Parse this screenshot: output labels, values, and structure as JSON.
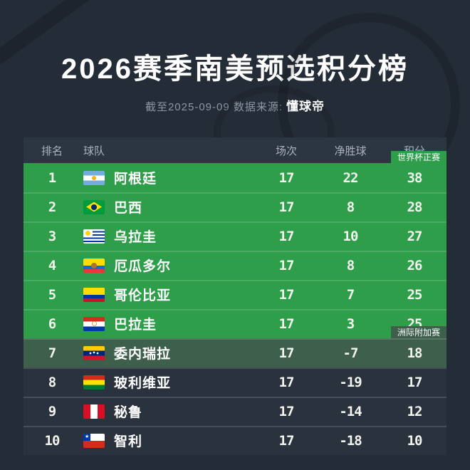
{
  "title": "2026赛季南美预选积分榜",
  "subtitle": {
    "prefix": "截至2025-09-09 数据来源:",
    "source": "懂球帝"
  },
  "colors": {
    "background": "#242c37",
    "header_bg": "#2c3542",
    "row_bg": "#2a323e",
    "qualified_green": "#2e9e4b",
    "playoff_green": "#3d5f4c",
    "text_primary": "#ffffff",
    "text_secondary": "#8d97a3"
  },
  "table": {
    "headers": {
      "rank": "排名",
      "team": "球队",
      "played": "场次",
      "gd": "净胜球",
      "points": "积分"
    },
    "rows": [
      {
        "rank": "1",
        "team": "阿根廷",
        "flag": "argentina",
        "played": "17",
        "gd": "22",
        "points": "38",
        "zone": "wc",
        "badge": "世界杯正赛"
      },
      {
        "rank": "2",
        "team": "巴西",
        "flag": "brazil",
        "played": "17",
        "gd": "8",
        "points": "28",
        "zone": "wc"
      },
      {
        "rank": "3",
        "team": "乌拉圭",
        "flag": "uruguay",
        "played": "17",
        "gd": "10",
        "points": "27",
        "zone": "wc"
      },
      {
        "rank": "4",
        "team": "厄瓜多尔",
        "flag": "ecuador",
        "played": "17",
        "gd": "8",
        "points": "26",
        "zone": "wc"
      },
      {
        "rank": "5",
        "team": "哥伦比亚",
        "flag": "colombia",
        "played": "17",
        "gd": "7",
        "points": "25",
        "zone": "wc"
      },
      {
        "rank": "6",
        "team": "巴拉圭",
        "flag": "paraguay",
        "played": "17",
        "gd": "3",
        "points": "25",
        "zone": "wc"
      },
      {
        "rank": "7",
        "team": "委内瑞拉",
        "flag": "venezuela",
        "played": "17",
        "gd": "-7",
        "points": "18",
        "zone": "playoff",
        "badge": "洲际附加赛"
      },
      {
        "rank": "8",
        "team": "玻利维亚",
        "flag": "bolivia",
        "played": "17",
        "gd": "-19",
        "points": "17",
        "zone": "none"
      },
      {
        "rank": "9",
        "team": "秘鲁",
        "flag": "peru",
        "played": "17",
        "gd": "-14",
        "points": "12",
        "zone": "none"
      },
      {
        "rank": "10",
        "team": "智利",
        "flag": "chile",
        "played": "17",
        "gd": "-18",
        "points": "10",
        "zone": "none"
      }
    ]
  },
  "chart_data": {
    "type": "table",
    "title": "2026赛季南美预选积分榜",
    "subtitle": "截至2025-09-09 数据来源:懂球帝",
    "columns": [
      "排名",
      "球队",
      "场次",
      "净胜球",
      "积分"
    ],
    "rows": [
      [
        1,
        "阿根廷",
        17,
        22,
        38
      ],
      [
        2,
        "巴西",
        17,
        8,
        28
      ],
      [
        3,
        "乌拉圭",
        17,
        10,
        27
      ],
      [
        4,
        "厄瓜多尔",
        17,
        8,
        26
      ],
      [
        5,
        "哥伦比亚",
        17,
        7,
        25
      ],
      [
        6,
        "巴拉圭",
        17,
        3,
        25
      ],
      [
        7,
        "委内瑞拉",
        17,
        -7,
        18
      ],
      [
        8,
        "玻利维亚",
        17,
        -19,
        17
      ],
      [
        9,
        "秘鲁",
        17,
        -14,
        12
      ],
      [
        10,
        "智利",
        17,
        -18,
        10
      ]
    ],
    "annotations": [
      {
        "label": "世界杯正赛",
        "applies_to_ranks": [
          1,
          2,
          3,
          4,
          5,
          6
        ],
        "color": "#2e9e4b"
      },
      {
        "label": "洲际附加赛",
        "applies_to_ranks": [
          7
        ],
        "color": "#3d5f4c"
      }
    ]
  }
}
